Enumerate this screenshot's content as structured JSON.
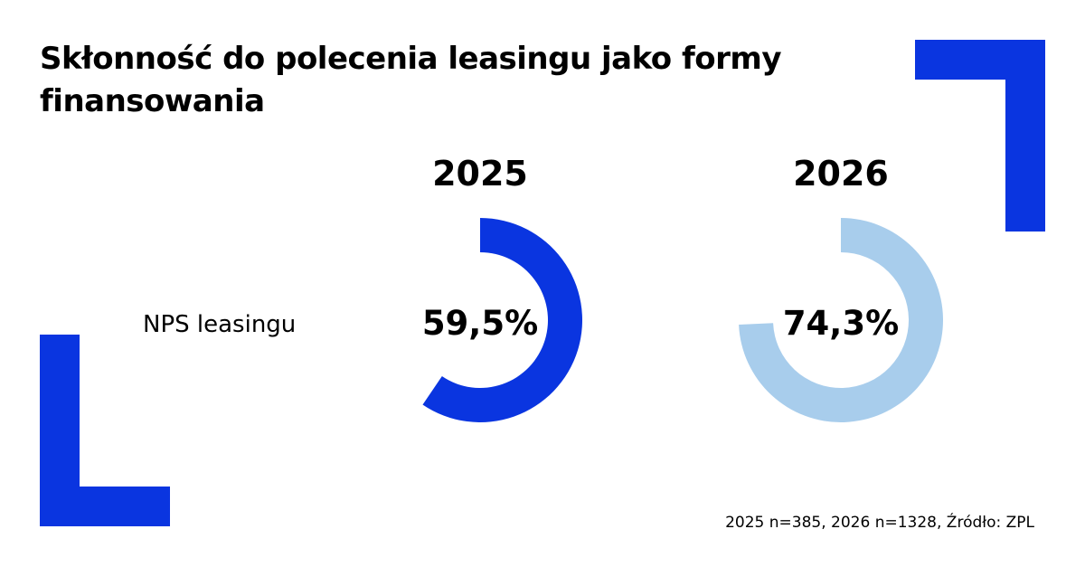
{
  "title": "Skłonność do polecenia leasingu jako formy finansowania",
  "colors": {
    "accent": "#0a35e0",
    "light": "#a8cdec"
  },
  "chart_data": {
    "type": "pie",
    "subtype": "donut",
    "title": "Skłonność do polecenia leasingu jako formy finansowania",
    "row_label": "NPS leasingu",
    "categories": [
      "2025",
      "2026"
    ],
    "values": [
      59.5,
      74.3
    ],
    "value_labels": [
      "59,5%",
      "74,3%"
    ],
    "unit": "%",
    "series_colors": [
      "#0a35e0",
      "#a8cdec"
    ]
  },
  "footnote": "2025 n=385, 2026 n=1328, Źródło: ZPL"
}
